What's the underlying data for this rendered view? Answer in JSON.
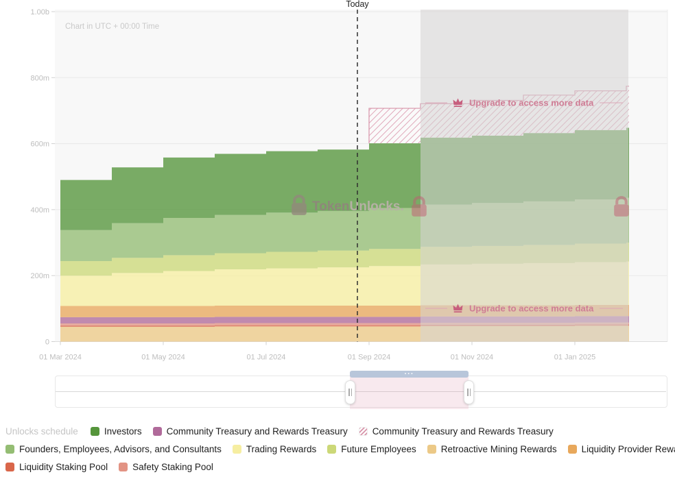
{
  "header": {
    "today_label": "Today",
    "timezone_note": "Chart in UTC + 00:00 Time"
  },
  "watermark": {
    "brand_bold": "Token",
    "brand_light": "Unlocks.",
    "brand_color_bold": "#8e877a",
    "brand_color_light": "#b6b0a5",
    "lock_color": "#93897c",
    "locked_mark_color": "#c25c73"
  },
  "upgrade": {
    "label": "Upgrade to access more data",
    "text_color": "#cf7d95",
    "crown_color": "#c75f7e",
    "line_color": "#dca8b8"
  },
  "axes": {
    "y_ticks": [
      {
        "value": 0,
        "label": "0"
      },
      {
        "value": 200,
        "label": "200m"
      },
      {
        "value": 400,
        "label": "400m"
      },
      {
        "value": 600,
        "label": "600m"
      },
      {
        "value": 800,
        "label": "800m"
      },
      {
        "value": 1000,
        "label": "1.00b"
      }
    ],
    "x_ticks": [
      {
        "index": 0,
        "label": "01 Mar 2024"
      },
      {
        "index": 2,
        "label": "01 May 2024"
      },
      {
        "index": 4,
        "label": "01 Jul 2024"
      },
      {
        "index": 6,
        "label": "01 Sep 2024"
      },
      {
        "index": 8,
        "label": "01 Nov 2024"
      },
      {
        "index": 10,
        "label": "01 Jan 2025"
      }
    ]
  },
  "chart_data": {
    "type": "area",
    "variant": "stacked-step",
    "unit": "millions of tokens",
    "ylim": [
      0,
      1000
    ],
    "title": "",
    "xlabel": "",
    "ylabel": "",
    "x": [
      "01 Mar 2024",
      "01 Apr 2024",
      "01 May 2024",
      "01 Jun 2024",
      "01 Jul 2024",
      "01 Aug 2024",
      "01 Sep 2024",
      "01 Oct 2024",
      "01 Nov 2024",
      "01 Dec 2024",
      "01 Jan 2025",
      "01 Feb 2025"
    ],
    "series": [
      {
        "name": "Retroactive Mining Rewards",
        "color": "#ecc987",
        "values": [
          45,
          45,
          45,
          46,
          46,
          46,
          46,
          47,
          47,
          47,
          48,
          48
        ]
      },
      {
        "name": "Liquidity Staking Pool",
        "color": "#d9664a",
        "values": [
          4,
          4,
          4,
          4,
          4,
          4,
          4,
          4,
          4,
          4,
          4,
          4
        ]
      },
      {
        "name": "Safety Staking Pool",
        "color": "#e29384",
        "values": [
          6,
          6,
          6,
          6,
          6,
          6,
          6,
          6,
          6,
          6,
          6,
          6
        ]
      },
      {
        "name": "Community Treasury and Rewards Treasury",
        "color": "#b06a9a",
        "values": [
          19,
          19,
          19,
          19,
          19,
          19,
          19,
          19,
          19,
          19,
          19,
          19
        ]
      },
      {
        "name": "Liquidity Provider Rewards",
        "color": "#e8a85c",
        "values": [
          34,
          34,
          34,
          34,
          34,
          34,
          34,
          34,
          34,
          34,
          34,
          34
        ]
      },
      {
        "name": "Trading Rewards",
        "color": "#f6eea1",
        "values": [
          92,
          100,
          106,
          110,
          113,
          116,
          120,
          124,
          126,
          128,
          130,
          132
        ]
      },
      {
        "name": "Future Employees",
        "color": "#ccd878",
        "values": [
          44,
          46,
          48,
          49,
          50,
          51,
          52,
          53,
          54,
          55,
          56,
          57
        ]
      },
      {
        "name": "Founders, Employees, Advisors, and Consultants",
        "color": "#94bd73",
        "values": [
          94,
          105,
          113,
          116,
          119,
          120,
          124,
          128,
          130,
          132,
          134,
          136
        ]
      },
      {
        "name": "Investors",
        "color": "#55953b",
        "values": [
          152,
          169,
          183,
          185,
          186,
          186,
          196,
          203,
          204,
          207,
          210,
          212
        ]
      },
      {
        "name": "Community Treasury and Rewards Treasury",
        "color": "#d793a9",
        "hatched": true,
        "values": [
          0,
          0,
          0,
          0,
          0,
          0,
          106,
          103,
          107,
          115,
          119,
          126
        ]
      }
    ],
    "legend_position": "bottom",
    "grid": "horizontal"
  },
  "legend": {
    "title": "Unlocks schedule",
    "rows": [
      [
        {
          "name": "Investors",
          "color": "#55953b"
        },
        {
          "name": "Community Treasury and Rewards Treasury",
          "color": "#b06a9a"
        },
        {
          "name": "Community Treasury and Rewards Treasury",
          "color": "#d793a9",
          "hatched": true
        }
      ],
      [
        {
          "name": "Founders, Employees, Advisors, and Consultants",
          "color": "#94bd73"
        },
        {
          "name": "Trading Rewards",
          "color": "#f6eea1"
        },
        {
          "name": "Future Employees",
          "color": "#ccd878"
        },
        {
          "name": "Retroactive Mining Rewards",
          "color": "#ecc987"
        },
        {
          "name": "Liquidity Provider Rewards",
          "color": "#e8a85c"
        }
      ],
      [
        {
          "name": "Liquidity Staking Pool",
          "color": "#d9664a"
        },
        {
          "name": "Safety Staking Pool",
          "color": "#e29384"
        }
      ]
    ]
  },
  "slider": {
    "dots": "···"
  }
}
